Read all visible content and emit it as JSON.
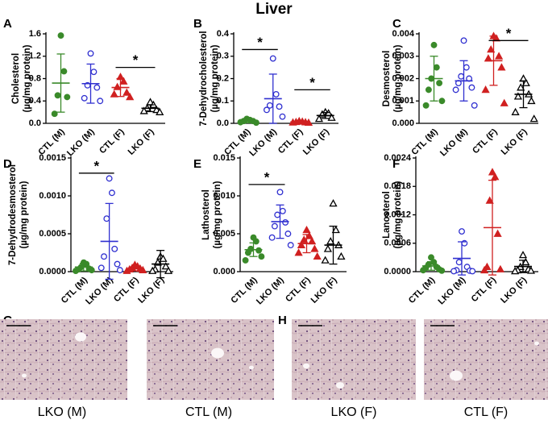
{
  "title": "Liver",
  "chart_data": [
    {
      "type": "dot",
      "panel": "A",
      "ylabel": [
        "Cholesterol",
        "(µg/mg protein)"
      ],
      "ylim": [
        0,
        1.6
      ],
      "yticks": [
        {
          "value": 0,
          "label": "0.0"
        },
        0.4,
        0.8,
        1.2,
        1.6
      ],
      "groups": [
        {
          "name": "CTL (M)",
          "color": "#3a8a2a",
          "marker": "circle",
          "filled": true,
          "points": [
            1.57,
            0.93,
            0.5,
            0.47,
            0.17
          ],
          "mean": 0.72,
          "sd": 0.52
        },
        {
          "name": "LKO (M)",
          "color": "#3030d0",
          "marker": "circle",
          "filled": false,
          "points": [
            1.25,
            0.92,
            0.68,
            0.64,
            0.45,
            0.4
          ],
          "mean": 0.71,
          "sd": 0.35
        },
        {
          "name": "CTL (F)",
          "color": "#d02020",
          "marker": "triangle",
          "filled": true,
          "points": [
            0.83,
            0.75,
            0.65,
            0.55,
            0.52,
            0.47
          ],
          "mean": 0.64,
          "sd": 0.16
        },
        {
          "name": "LKO (F)",
          "color": "#000000",
          "marker": "triangle",
          "filled": false,
          "points": [
            0.38,
            0.33,
            0.27,
            0.24,
            0.22,
            0.2
          ],
          "mean": 0.27,
          "sd": 0.06
        }
      ],
      "significance": [
        {
          "label": "*",
          "groups": [
            2,
            3
          ],
          "y": 1.0
        }
      ]
    },
    {
      "type": "dot",
      "panel": "B",
      "ylabel": [
        "7-Dehydrocholesterol",
        "(µg/mg protein)"
      ],
      "ylim": [
        0,
        0.4
      ],
      "yticks": [
        {
          "value": 0,
          "label": "0.0"
        },
        0.1,
        0.2,
        0.3,
        0.4
      ],
      "groups": [
        {
          "name": "CTL (M)",
          "color": "#3a8a2a",
          "marker": "circle",
          "filled": true,
          "points": [
            0.02,
            0.015,
            0.01,
            0.01,
            0.005,
            0.003
          ],
          "mean": 0.01,
          "sd": 0.008
        },
        {
          "name": "LKO (M)",
          "color": "#3030d0",
          "marker": "circle",
          "filled": false,
          "points": [
            0.29,
            0.13,
            0.08,
            0.075,
            0.06,
            0.03
          ],
          "mean": 0.11,
          "sd": 0.11
        },
        {
          "name": "CTL (F)",
          "color": "#d02020",
          "marker": "triangle",
          "filled": true,
          "points": [
            0.01,
            0.008,
            0.006,
            0.005,
            0.004,
            0.003
          ],
          "mean": 0.006,
          "sd": 0.003
        },
        {
          "name": "LKO (F)",
          "color": "#000000",
          "marker": "triangle",
          "filled": false,
          "points": [
            0.05,
            0.045,
            0.04,
            0.025,
            0.02
          ],
          "mean": 0.035,
          "sd": 0.013
        }
      ],
      "significance": [
        {
          "label": "*",
          "groups": [
            0,
            1
          ],
          "y": 0.33
        },
        {
          "label": "*",
          "groups": [
            2,
            3
          ],
          "y": 0.15
        }
      ]
    },
    {
      "type": "dot",
      "panel": "C",
      "ylabel": [
        "Desmosterol",
        "(µg/mg protein)"
      ],
      "ylim": [
        0,
        0.004
      ],
      "yticks": [
        {
          "value": 0,
          "label": "0.000"
        },
        0.001,
        0.002,
        0.003,
        0.004
      ],
      "groups": [
        {
          "name": "CTL (M)",
          "color": "#3a8a2a",
          "marker": "circle",
          "filled": true,
          "points": [
            0.0035,
            0.0025,
            0.002,
            0.0018,
            0.0015,
            0.001,
            0.0008
          ],
          "mean": 0.002,
          "sd": 0.001
        },
        {
          "name": "LKO (M)",
          "color": "#3030d0",
          "marker": "circle",
          "filled": false,
          "points": [
            0.0037,
            0.0025,
            0.0021,
            0.002,
            0.0018,
            0.0016,
            0.0015,
            0.0008
          ],
          "mean": 0.0019,
          "sd": 0.0009
        },
        {
          "name": "CTL (F)",
          "color": "#d02020",
          "marker": "triangle",
          "filled": true,
          "points": [
            0.0039,
            0.0038,
            0.0033,
            0.003,
            0.0029,
            0.0025,
            0.0015,
            0.0009
          ],
          "mean": 0.0028,
          "sd": 0.0011
        },
        {
          "name": "LKO (F)",
          "color": "#000000",
          "marker": "triangle",
          "filled": false,
          "points": [
            0.002,
            0.0018,
            0.0016,
            0.0013,
            0.0012,
            0.001,
            0.0005,
            0.0002
          ],
          "mean": 0.0013,
          "sd": 0.0006
        }
      ],
      "significance": [
        {
          "label": "*",
          "groups": [
            2,
            3
          ],
          "y": 0.0037
        }
      ]
    },
    {
      "type": "dot",
      "panel": "D",
      "ylabel": [
        "7-Dehydrodesmosterol",
        "(µg/mg protein)"
      ],
      "ylim": [
        0,
        0.0015
      ],
      "yticks": [
        {
          "value": 0,
          "label": "0.0000"
        },
        0.0005,
        {
          "value": 0.001,
          "label": "0.0010"
        },
        0.0015
      ],
      "groups": [
        {
          "name": "CTL (M)",
          "color": "#3a8a2a",
          "marker": "circle",
          "filled": true,
          "points": [
            0.00012,
            0.0001,
            6e-05,
            4e-05,
            3e-05,
            2e-05,
            1e-05
          ],
          "mean": 6e-05,
          "sd": 5e-05
        },
        {
          "name": "LKO (M)",
          "color": "#3030d0",
          "marker": "circle",
          "filled": false,
          "points": [
            0.00123,
            0.00104,
            0.0007,
            0.0003,
            0.0002,
            0.0001,
            5e-05,
            2e-05
          ],
          "mean": 0.0004,
          "sd": 0.0005
        },
        {
          "name": "CTL (F)",
          "color": "#d02020",
          "marker": "triangle",
          "filled": true,
          "points": [
            9e-05,
            7e-05,
            5e-05,
            4e-05,
            3e-05,
            2e-05,
            1e-05
          ],
          "mean": 4e-05,
          "sd": 3e-05
        },
        {
          "name": "LKO (F)",
          "color": "#000000",
          "marker": "triangle",
          "filled": false,
          "points": [
            0.0002,
            0.00017,
            0.00012,
            7e-05,
            3e-05,
            1e-05,
            1e-05
          ],
          "mean": 0.0001,
          "sd": 0.00018
        }
      ],
      "significance": [
        {
          "label": "*",
          "groups": [
            0,
            1
          ],
          "y": 0.0013
        }
      ]
    },
    {
      "type": "dot",
      "panel": "E",
      "ylabel": [
        "Lathosterol",
        "(µg/mg protein)"
      ],
      "ylim": [
        0,
        0.015
      ],
      "yticks": [
        {
          "value": 0,
          "label": "0.000"
        },
        0.005,
        {
          "value": 0.01,
          "label": "0.010"
        },
        0.015
      ],
      "groups": [
        {
          "name": "CTL (M)",
          "color": "#3a8a2a",
          "marker": "circle",
          "filled": true,
          "points": [
            0.0045,
            0.004,
            0.003,
            0.0028,
            0.0025,
            0.002,
            0.0015
          ],
          "mean": 0.0029,
          "sd": 0.0009
        },
        {
          "name": "LKO (M)",
          "color": "#3030d0",
          "marker": "circle",
          "filled": false,
          "points": [
            0.0105,
            0.008,
            0.0075,
            0.0065,
            0.006,
            0.005,
            0.0045,
            0.0035
          ],
          "mean": 0.0066,
          "sd": 0.0022
        },
        {
          "name": "CTL (F)",
          "color": "#d02020",
          "marker": "triangle",
          "filled": true,
          "points": [
            0.0055,
            0.0047,
            0.0042,
            0.004,
            0.0035,
            0.003,
            0.0025,
            0.002
          ],
          "mean": 0.0037,
          "sd": 0.0012
        },
        {
          "name": "LKO (F)",
          "color": "#000000",
          "marker": "triangle",
          "filled": false,
          "points": [
            0.009,
            0.0055,
            0.004,
            0.0035,
            0.003,
            0.002,
            0.0015
          ],
          "mean": 0.0035,
          "sd": 0.0025
        }
      ],
      "significance": [
        {
          "label": "*",
          "groups": [
            0,
            1
          ],
          "y": 0.0115
        }
      ]
    },
    {
      "type": "dot",
      "panel": "F",
      "ylabel": [
        "Lanosterol",
        "(µg/mg protein)"
      ],
      "ylim": [
        0,
        0.0024
      ],
      "yticks": [
        {
          "value": 0,
          "label": "0.0000"
        },
        0.0006,
        0.0012,
        0.0018,
        0.0024
      ],
      "groups": [
        {
          "name": "CTL (M)",
          "color": "#3a8a2a",
          "marker": "circle",
          "filled": true,
          "points": [
            0.0003,
            0.0002,
            0.00015,
            0.0001,
            8e-05,
            5e-05,
            3e-05,
            2e-05
          ],
          "mean": 0.00012,
          "sd": 9e-05
        },
        {
          "name": "LKO (M)",
          "color": "#3030d0",
          "marker": "circle",
          "filled": false,
          "points": [
            0.00085,
            0.0006,
            0.0002,
            0.0001,
            3e-05,
            2e-05,
            1e-05,
            1e-05
          ],
          "mean": 0.00028,
          "sd": 0.00035
        },
        {
          "name": "CTL (F)",
          "color": "#d02020",
          "marker": "triangle",
          "filled": true,
          "points": [
            0.0021,
            0.002,
            0.0015,
            0.0008,
            0.0001,
            5e-05,
            3e-05
          ],
          "mean": 0.00093,
          "sd": 0.001
        },
        {
          "name": "LKO (F)",
          "color": "#000000",
          "marker": "triangle",
          "filled": false,
          "points": [
            0.00035,
            0.0002,
            0.0001,
            5e-05,
            3e-05,
            2e-05,
            1e-05
          ],
          "mean": 0.00011,
          "sd": 0.00013
        }
      ],
      "significance": []
    }
  ],
  "histology": [
    {
      "panel": "G",
      "images": [
        {
          "caption": "LKO (M)"
        },
        {
          "caption": "CTL (M)"
        }
      ]
    },
    {
      "panel": "H",
      "images": [
        {
          "caption": "LKO (F)"
        },
        {
          "caption": "CTL (F)"
        }
      ]
    }
  ]
}
